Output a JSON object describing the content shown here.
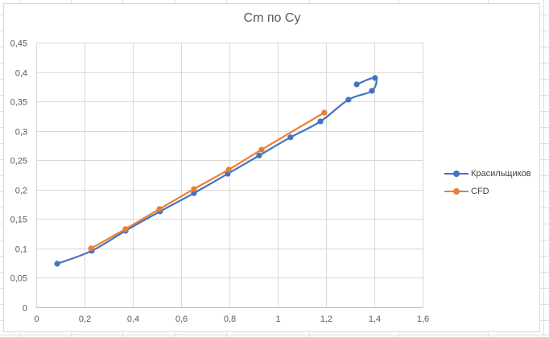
{
  "chart_data": {
    "type": "line",
    "subtype": "scatter-with-smooth-lines-and-markers",
    "title": "Cm по Cy",
    "xlabel": "",
    "ylabel": "",
    "xlim": [
      0,
      1.6
    ],
    "ylim": [
      0,
      0.45
    ],
    "x_ticks": [
      "0",
      "0,2",
      "0,4",
      "0,6",
      "0,8",
      "1",
      "1,2",
      "1,4",
      "1,6"
    ],
    "y_ticks": [
      "0",
      "0,05",
      "0,1",
      "0,15",
      "0,2",
      "0,25",
      "0,3",
      "0,35",
      "0,4",
      "0,45"
    ],
    "grid": true,
    "legend_position": "right",
    "series": [
      {
        "name": "Красильщиков",
        "color": "#4472c4",
        "x": [
          0.087,
          0.23,
          0.37,
          0.513,
          0.653,
          0.793,
          0.923,
          1.053,
          1.177,
          1.293,
          1.39,
          1.403,
          1.327
        ],
        "y": [
          0.074,
          0.096,
          0.13,
          0.163,
          0.194,
          0.227,
          0.258,
          0.289,
          0.316,
          0.353,
          0.368,
          0.39,
          0.379
        ]
      },
      {
        "name": "CFD",
        "color": "#ed7d31",
        "x": [
          0.227,
          0.37,
          0.51,
          0.653,
          0.797,
          0.933,
          1.193
        ],
        "y": [
          0.1,
          0.133,
          0.167,
          0.201,
          0.234,
          0.268,
          0.331
        ]
      }
    ]
  },
  "chart": {
    "title": "Cm по Cy",
    "legend": [
      {
        "label": "Красильщиков",
        "color": "#4472c4"
      },
      {
        "label": "CFD",
        "color": "#ed7d31"
      }
    ]
  }
}
